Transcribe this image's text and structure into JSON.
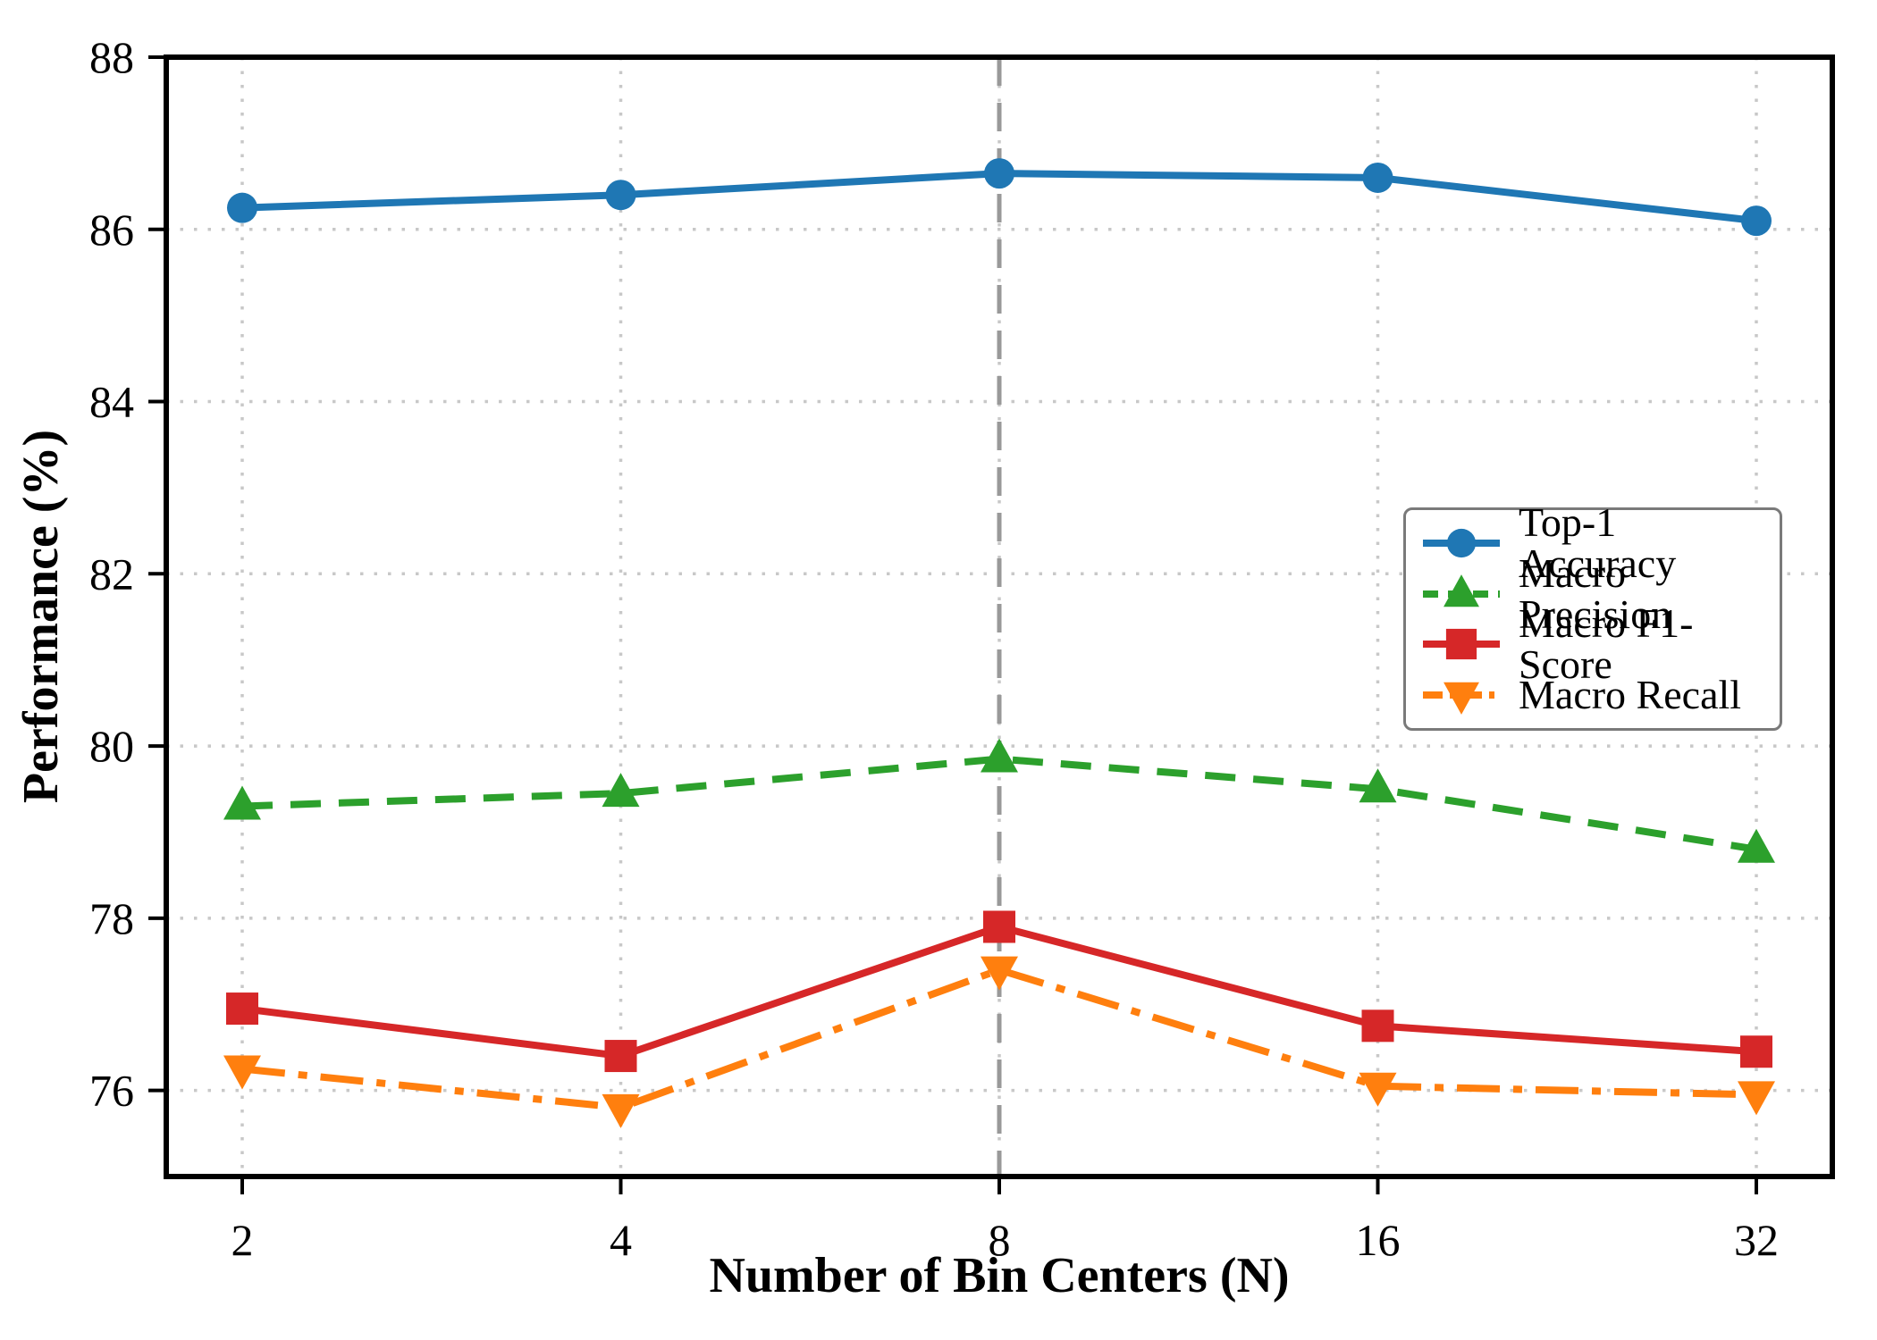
{
  "chart_data": {
    "type": "line",
    "title": "",
    "xlabel": "Number of Bin Centers (N)",
    "ylabel": "Performance (%)",
    "categories": [
      "2",
      "4",
      "8",
      "16",
      "32"
    ],
    "x_values": [
      2,
      4,
      8,
      16,
      32
    ],
    "ylim": [
      75,
      88
    ],
    "yticks": [
      76,
      78,
      80,
      82,
      84,
      86,
      88
    ],
    "grid": "dotted",
    "grid_color": "#c8c8c8",
    "axis_color": "#000000",
    "legend_position": "center-right",
    "highlight_vline": {
      "x": 8,
      "color": "#999999",
      "style": "dashed"
    },
    "series": [
      {
        "name": "Top-1 Accuracy",
        "color": "#1f77b4",
        "marker": "circle",
        "line_style": "solid",
        "values": [
          86.25,
          86.4,
          86.65,
          86.6,
          86.1
        ]
      },
      {
        "name": "Macro Precision",
        "color": "#2ca02c",
        "marker": "triangle-up",
        "line_style": "dashed",
        "values": [
          79.3,
          79.45,
          79.85,
          79.5,
          78.8
        ]
      },
      {
        "name": "Macro F1-Score",
        "color": "#d62728",
        "marker": "square",
        "line_style": "solid",
        "values": [
          76.95,
          76.4,
          77.9,
          76.75,
          76.45
        ]
      },
      {
        "name": "Macro Recall",
        "color": "#ff7f0e",
        "marker": "triangle-down",
        "line_style": "dashdot",
        "values": [
          76.25,
          75.8,
          77.4,
          76.05,
          75.95
        ]
      }
    ]
  }
}
